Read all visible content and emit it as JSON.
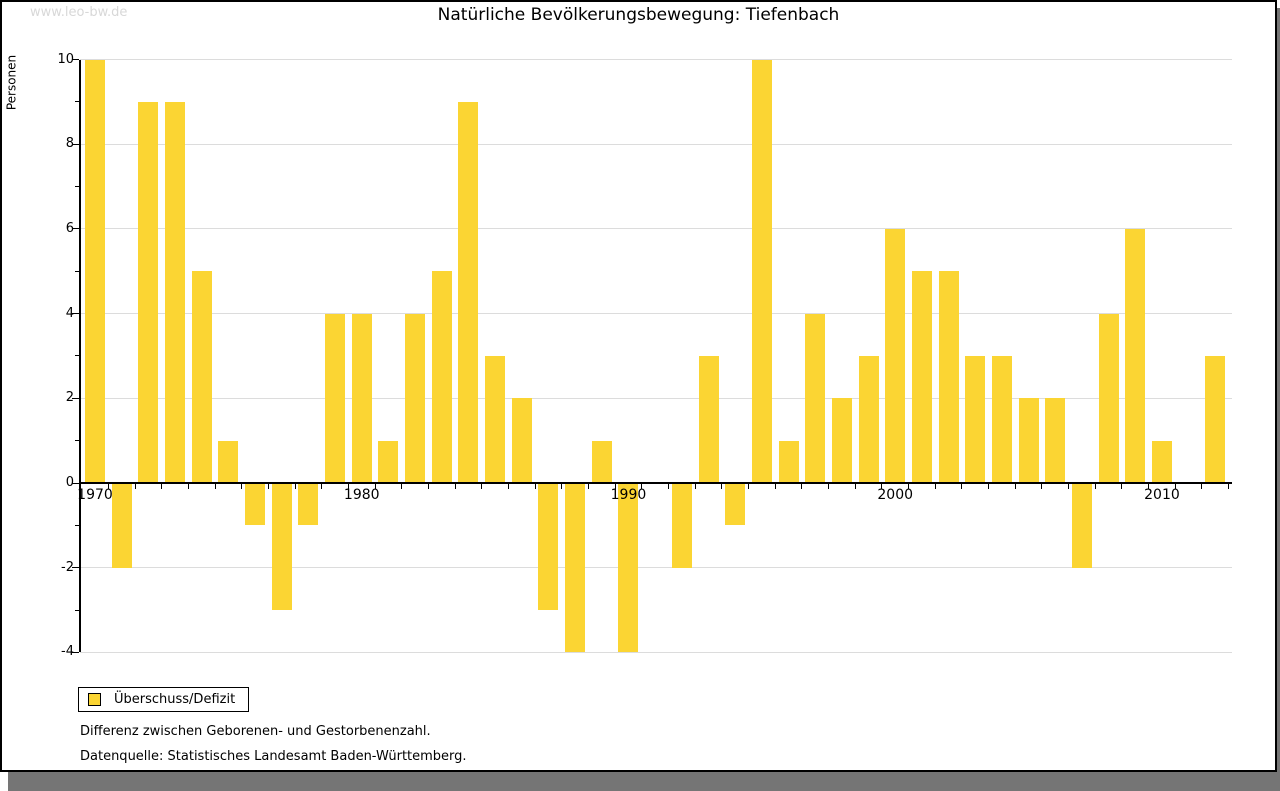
{
  "watermark": "www.leo-bw.de",
  "chart_data": {
    "type": "bar",
    "title": "Natürliche Bevölkerungsbewegung: Tiefenbach",
    "ylabel": "Personen",
    "legend_label": "Überschuss/Defizit",
    "years": [
      1970,
      1971,
      1972,
      1973,
      1974,
      1975,
      1976,
      1977,
      1978,
      1979,
      1980,
      1981,
      1982,
      1983,
      1984,
      1985,
      1986,
      1987,
      1988,
      1989,
      1990,
      1991,
      1992,
      1993,
      1994,
      1995,
      1996,
      1997,
      1998,
      1999,
      2000,
      2001,
      2002,
      2003,
      2004,
      2005,
      2006,
      2007,
      2008,
      2009,
      2010,
      2011,
      2012
    ],
    "values": [
      10,
      -2,
      9,
      9,
      5,
      1,
      -1,
      -3,
      -1,
      4,
      4,
      1,
      4,
      5,
      9,
      3,
      2,
      -3,
      -4,
      1,
      -4,
      0,
      -2,
      3,
      -1,
      10,
      1,
      4,
      2,
      3,
      6,
      5,
      5,
      3,
      3,
      2,
      2,
      -2,
      4,
      6,
      1,
      0,
      3
    ],
    "ylim": [
      -4,
      10
    ],
    "ytick_labels": [
      10,
      8,
      6,
      4,
      2,
      0,
      -2,
      -4
    ],
    "ytick_minor": [
      9,
      7,
      5,
      3,
      1,
      -1,
      -3
    ],
    "gridline_values": [
      10,
      8,
      6,
      4,
      2,
      -2,
      -4
    ],
    "xtick_labels": [
      1970,
      1980,
      1990,
      2000,
      2010
    ],
    "grid": "horizontal",
    "legend_position": "bottom-left"
  },
  "notes": [
    "Differenz zwischen Geborenen- und Gestorbenenzahl.",
    "Datenquelle: Statistisches Landesamt Baden-Württemberg."
  ],
  "colors": {
    "bar": "#FBD533",
    "grid": "#DCDCDC",
    "axis": "#000000",
    "watermark": "#D8D8D8",
    "shadow": "#757575",
    "legend_border": "#000000"
  }
}
